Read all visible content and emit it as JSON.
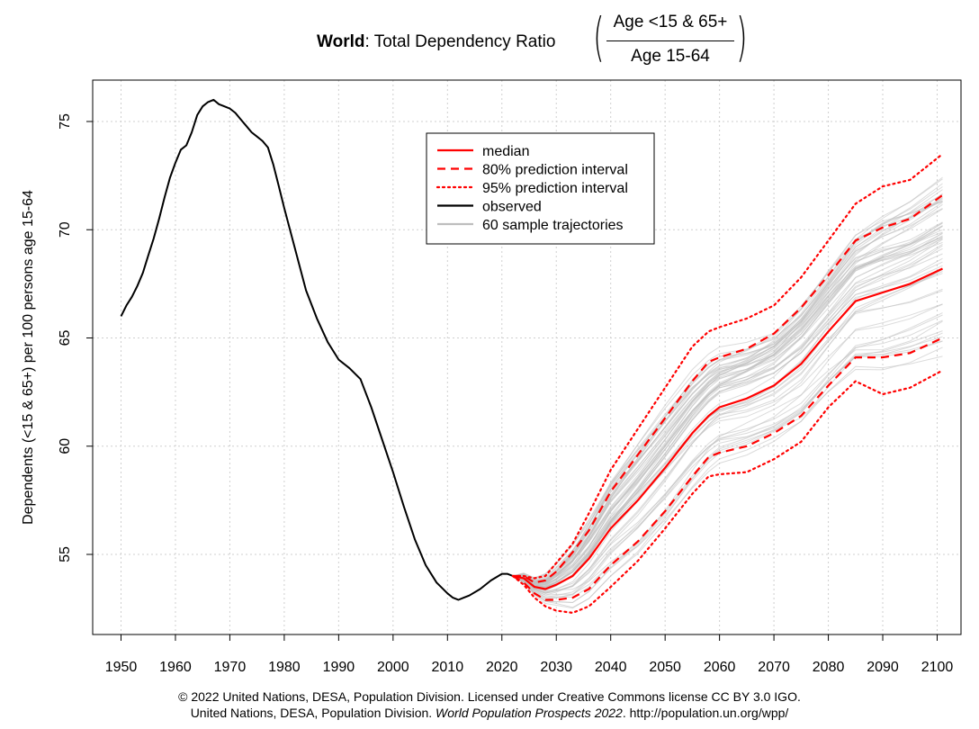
{
  "title": {
    "bold": "World",
    "rest": ": Total Dependency Ratio",
    "numerator": "Age <15 & 65+",
    "denominator": "Age 15-64"
  },
  "footer": {
    "line1": "© 2022 United Nations, DESA, Population Division. Licensed under Creative Commons license CC BY 3.0 IGO.",
    "line2_a": "United Nations, DESA, Population Division.",
    "line2_italic": "World Population Prospects 2022",
    "line2_b": ". http://population.un.org/wpp/"
  },
  "chart_data": {
    "type": "line",
    "ylabel": "Dependents (<15 & 65+) per 100 persons age 15-64",
    "xlabel": "",
    "xlim": [
      1950,
      2100
    ],
    "ylim": [
      52,
      76.5
    ],
    "x_ticks": [
      1950,
      1960,
      1970,
      1980,
      1990,
      2000,
      2010,
      2020,
      2030,
      2040,
      2050,
      2060,
      2070,
      2080,
      2090,
      2100
    ],
    "y_ticks": [
      55,
      60,
      65,
      70,
      75
    ],
    "grid": true,
    "legend_position": "top-center",
    "legend": [
      {
        "label": "median",
        "color": "#ff0000",
        "style": "solid"
      },
      {
        "label": "80% prediction interval",
        "color": "#ff0000",
        "style": "dashed"
      },
      {
        "label": "95% prediction interval",
        "color": "#ff0000",
        "style": "dotted"
      },
      {
        "label": "observed",
        "color": "#000000",
        "style": "solid"
      },
      {
        "label": "60 sample trajectories",
        "color": "#bebebe",
        "style": "solid"
      }
    ],
    "series": [
      {
        "name": "observed",
        "color": "#000000",
        "x": [
          1950,
          1951,
          1952,
          1953,
          1954,
          1955,
          1956,
          1957,
          1958,
          1959,
          1960,
          1961,
          1962,
          1963,
          1964,
          1965,
          1966,
          1967,
          1968,
          1969,
          1970,
          1971,
          1972,
          1973,
          1974,
          1975,
          1976,
          1977,
          1978,
          1979,
          1980,
          1982,
          1984,
          1986,
          1988,
          1990,
          1992,
          1994,
          1996,
          1998,
          2000,
          2002,
          2004,
          2006,
          2008,
          2010,
          2011,
          2012,
          2013,
          2014,
          2016,
          2018,
          2020,
          2021,
          2022
        ],
        "y": [
          66.0,
          66.5,
          66.9,
          67.4,
          68.0,
          68.8,
          69.6,
          70.5,
          71.5,
          72.4,
          73.1,
          73.7,
          73.9,
          74.5,
          75.3,
          75.7,
          75.9,
          76.0,
          75.8,
          75.7,
          75.6,
          75.4,
          75.1,
          74.8,
          74.5,
          74.3,
          74.1,
          73.8,
          73.0,
          72.0,
          71.0,
          69.1,
          67.2,
          65.9,
          64.8,
          64.0,
          63.6,
          63.1,
          61.8,
          60.3,
          58.8,
          57.2,
          55.7,
          54.5,
          53.7,
          53.2,
          53.0,
          52.9,
          53.0,
          53.1,
          53.4,
          53.8,
          54.1,
          54.1,
          54.0
        ]
      },
      {
        "name": "median",
        "color": "#ff0000",
        "x": [
          2022,
          2024,
          2026,
          2028,
          2030,
          2033,
          2036,
          2040,
          2045,
          2050,
          2055,
          2058,
          2060,
          2065,
          2070,
          2075,
          2080,
          2085,
          2090,
          2095,
          2101
        ],
        "y": [
          54.0,
          53.9,
          53.5,
          53.4,
          53.6,
          54.0,
          54.8,
          56.2,
          57.5,
          59.0,
          60.6,
          61.4,
          61.8,
          62.2,
          62.8,
          63.8,
          65.3,
          66.7,
          67.1,
          67.5,
          68.2
        ]
      },
      {
        "name": "80% upper",
        "color": "#ff0000",
        "x": [
          2022,
          2024,
          2026,
          2028,
          2030,
          2033,
          2036,
          2040,
          2045,
          2050,
          2055,
          2058,
          2060,
          2065,
          2070,
          2075,
          2080,
          2085,
          2090,
          2095,
          2101
        ],
        "y": [
          54.0,
          54.0,
          53.7,
          53.8,
          54.2,
          55.1,
          56.1,
          57.9,
          59.6,
          61.3,
          63.0,
          63.9,
          64.1,
          64.5,
          65.2,
          66.4,
          67.9,
          69.5,
          70.1,
          70.5,
          71.6
        ]
      },
      {
        "name": "80% lower",
        "color": "#ff0000",
        "x": [
          2022,
          2024,
          2026,
          2028,
          2030,
          2033,
          2036,
          2040,
          2045,
          2050,
          2055,
          2058,
          2060,
          2065,
          2070,
          2075,
          2080,
          2085,
          2090,
          2095,
          2101
        ],
        "y": [
          54.0,
          53.7,
          53.2,
          52.9,
          52.9,
          53.0,
          53.4,
          54.5,
          55.6,
          57.0,
          58.6,
          59.5,
          59.7,
          60.0,
          60.6,
          61.4,
          62.8,
          64.1,
          64.1,
          64.3,
          65.0
        ]
      },
      {
        "name": "95% upper",
        "color": "#ff0000",
        "x": [
          2022,
          2024,
          2026,
          2028,
          2030,
          2033,
          2036,
          2040,
          2045,
          2050,
          2055,
          2058,
          2060,
          2065,
          2070,
          2075,
          2080,
          2085,
          2090,
          2095,
          2101
        ],
        "y": [
          54.0,
          54.0,
          53.9,
          54.0,
          54.6,
          55.5,
          56.9,
          58.9,
          60.8,
          62.7,
          64.6,
          65.3,
          65.5,
          65.9,
          66.5,
          67.8,
          69.5,
          71.2,
          72.0,
          72.3,
          73.5
        ]
      },
      {
        "name": "95% lower",
        "color": "#ff0000",
        "x": [
          2022,
          2024,
          2026,
          2028,
          2030,
          2033,
          2036,
          2040,
          2045,
          2050,
          2055,
          2058,
          2060,
          2065,
          2070,
          2075,
          2080,
          2085,
          2090,
          2095,
          2101
        ],
        "y": [
          54.0,
          53.6,
          53.0,
          52.6,
          52.4,
          52.3,
          52.6,
          53.5,
          54.7,
          56.2,
          57.8,
          58.6,
          58.7,
          58.8,
          59.4,
          60.2,
          61.8,
          63.0,
          62.4,
          62.7,
          63.5
        ]
      }
    ],
    "sample_trajectories_count": 60,
    "sample_trajectories_color": "#bebebe"
  }
}
